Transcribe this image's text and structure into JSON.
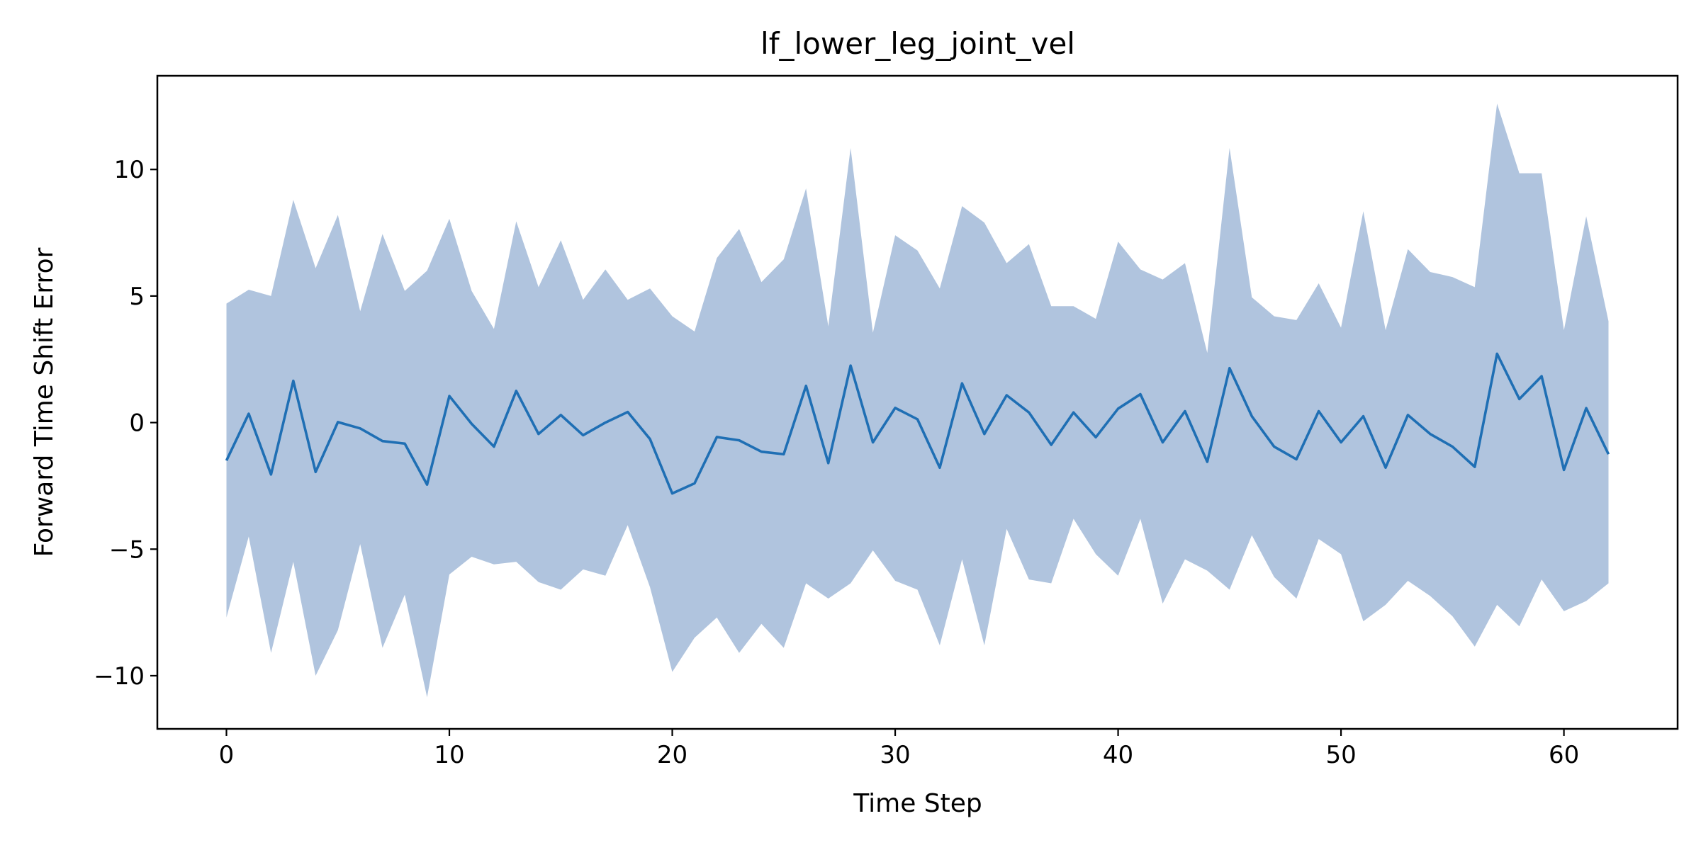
{
  "chart_data": {
    "type": "area",
    "title": "lf_lower_leg_joint_vel",
    "xlabel": "Time Step",
    "ylabel": "Forward Time Shift Error",
    "xlim": [
      -3.1,
      65.1
    ],
    "ylim": [
      -12.1,
      13.7
    ],
    "x_ticks": [
      0,
      10,
      20,
      30,
      40,
      50,
      60
    ],
    "y_ticks": [
      -10,
      -5,
      0,
      5,
      10
    ],
    "y_tick_labels": [
      "−10",
      "−5",
      "0",
      "5",
      "10"
    ],
    "grid": false,
    "legend": "none",
    "colors": {
      "line": "#1f6fb4",
      "band": "#b0c4de"
    },
    "x": [
      0,
      1,
      2,
      3,
      4,
      5,
      6,
      7,
      8,
      9,
      10,
      11,
      12,
      13,
      14,
      15,
      16,
      17,
      18,
      19,
      20,
      21,
      22,
      23,
      24,
      25,
      26,
      27,
      28,
      29,
      30,
      31,
      32,
      33,
      34,
      35,
      36,
      37,
      38,
      39,
      40,
      41,
      42,
      43,
      44,
      45,
      46,
      47,
      48,
      49,
      50,
      51,
      52,
      53,
      54,
      55,
      56,
      57,
      58,
      59,
      60,
      61,
      62
    ],
    "series": [
      {
        "kind": "line",
        "values": [
          -1.5,
          0.35,
          -2.05,
          1.65,
          -1.95,
          0.02,
          -0.23,
          -0.73,
          -0.83,
          -2.45,
          1.05,
          -0.05,
          -0.95,
          1.25,
          -0.45,
          0.3,
          -0.5,
          0,
          0.42,
          -0.65,
          -2.8,
          -2.4,
          -0.57,
          -0.7,
          -1.15,
          -1.25,
          1.45,
          -1.6,
          2.25,
          -0.78,
          0.58,
          0.13,
          -1.78,
          1.55,
          -0.45,
          1.08,
          0.4,
          -0.88,
          0.4,
          -0.58,
          0.55,
          1.12,
          -0.78,
          0.45,
          -1.55,
          2.15,
          0.25,
          -0.95,
          -1.45,
          0.45,
          -0.78,
          0.25,
          -1.78,
          0.3,
          -0.45,
          -0.95,
          -1.75,
          2.72,
          0.93,
          1.83,
          -1.87,
          0.57,
          -1.25
        ]
      },
      {
        "kind": "band",
        "upper": [
          4.7,
          5.25,
          5.0,
          8.8,
          6.1,
          8.2,
          4.4,
          7.45,
          5.2,
          6.0,
          8.05,
          5.2,
          3.7,
          7.95,
          5.35,
          7.2,
          4.85,
          6.05,
          4.85,
          5.3,
          4.2,
          3.6,
          6.5,
          7.65,
          5.55,
          6.45,
          9.25,
          3.8,
          10.85,
          3.55,
          7.4,
          6.8,
          5.3,
          8.55,
          7.9,
          6.3,
          7.05,
          4.6,
          4.6,
          4.1,
          7.15,
          6.05,
          5.65,
          6.3,
          2.75,
          10.85,
          4.95,
          4.2,
          4.05,
          5.5,
          3.75,
          8.35,
          3.65,
          6.85,
          5.95,
          5.75,
          5.35,
          12.6,
          9.85,
          9.85,
          3.65,
          8.15,
          4.0
        ],
        "lower": [
          -7.7,
          -4.5,
          -9.1,
          -5.5,
          -10.0,
          -8.2,
          -4.8,
          -8.9,
          -6.8,
          -10.85,
          -6.0,
          -5.3,
          -5.6,
          -5.5,
          -6.3,
          -6.6,
          -5.8,
          -6.05,
          -4.05,
          -6.5,
          -9.85,
          -8.5,
          -7.7,
          -9.1,
          -7.95,
          -8.9,
          -6.35,
          -6.95,
          -6.35,
          -5.05,
          -6.25,
          -6.6,
          -8.8,
          -5.4,
          -8.8,
          -4.2,
          -6.2,
          -6.35,
          -3.8,
          -5.2,
          -6.05,
          -3.8,
          -7.15,
          -5.4,
          -5.85,
          -6.6,
          -4.45,
          -6.1,
          -6.95,
          -4.6,
          -5.2,
          -7.85,
          -7.2,
          -6.25,
          -6.85,
          -7.65,
          -8.85,
          -7.2,
          -8.05,
          -6.2,
          -7.45,
          -7.05,
          -6.35
        ]
      }
    ]
  }
}
